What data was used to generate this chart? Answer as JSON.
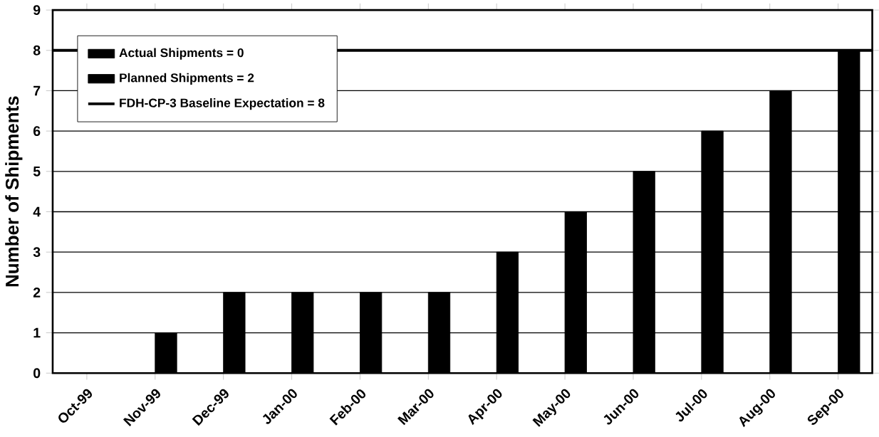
{
  "chart_data": {
    "type": "bar",
    "ylabel": "Number of Shipments",
    "categories": [
      "Oct-99",
      "Nov-99",
      "Dec-99",
      "Jan-00",
      "Feb-00",
      "Mar-00",
      "Apr-00",
      "May-00",
      "Jun-00",
      "Jul-00",
      "Aug-00",
      "Sep-00"
    ],
    "series": [
      {
        "name": "Actual Shipments = 0",
        "color": "#000000",
        "values": [
          0,
          0,
          0,
          0,
          0,
          0,
          0,
          0,
          0,
          0,
          0,
          0
        ]
      },
      {
        "name": "Planned Shipments = 2",
        "color": "#000000",
        "values": [
          0,
          1,
          2,
          2,
          2,
          2,
          3,
          4,
          5,
          6,
          7,
          8
        ]
      }
    ],
    "ref_lines": [
      {
        "axis": "y",
        "value": 8,
        "label": "FDH-CP-3 Baseline Expectation = 8",
        "color": "#000000"
      }
    ],
    "ylim": [
      0,
      9
    ],
    "yticks": [
      0,
      1,
      2,
      3,
      4,
      5,
      6,
      7,
      8,
      9
    ],
    "grid": "y",
    "legend": "top left"
  }
}
